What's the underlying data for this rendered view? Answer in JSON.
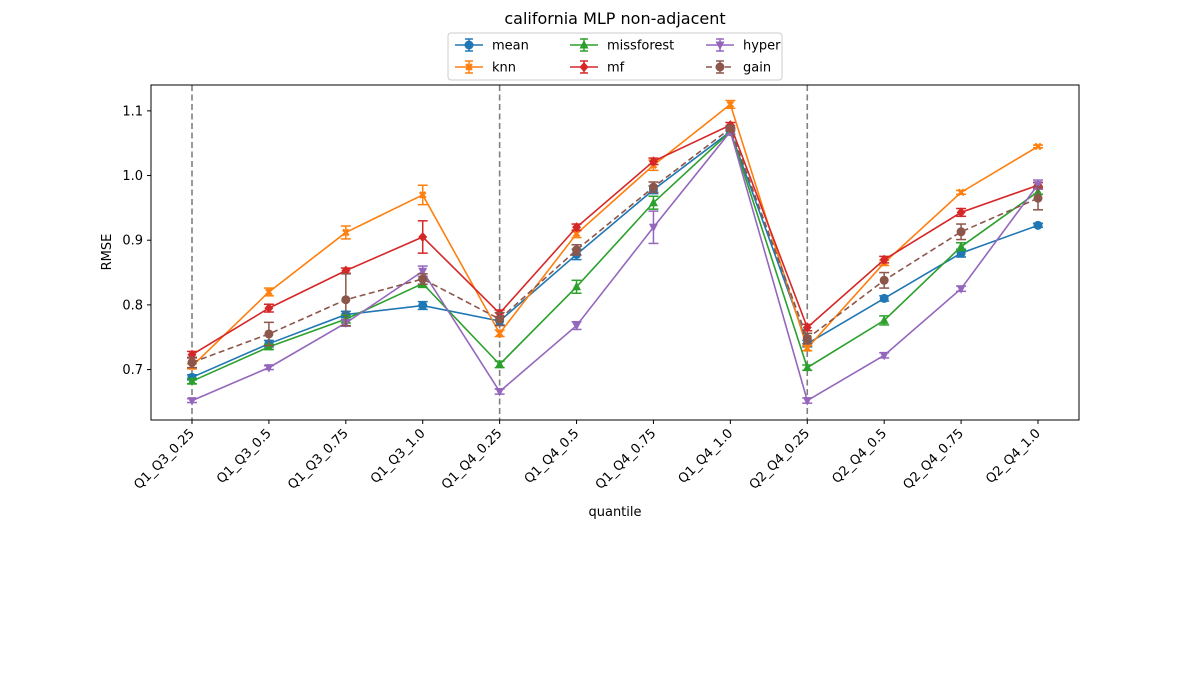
{
  "chart_data": {
    "type": "line",
    "title": "california MLP non-adjacent",
    "xlabel": "quantile",
    "ylabel": "RMSE",
    "categories": [
      "Q1_Q3_0.25",
      "Q1_Q3_0.5",
      "Q1_Q3_0.75",
      "Q1_Q3_1.0",
      "Q1_Q4_0.25",
      "Q1_Q4_0.5",
      "Q1_Q4_0.75",
      "Q1_Q4_1.0",
      "Q2_Q4_0.25",
      "Q2_Q4_0.5",
      "Q2_Q4_0.75",
      "Q2_Q4_1.0"
    ],
    "ylim": [
      0.622,
      1.14
    ],
    "yticks": [
      0.7,
      0.8,
      0.9,
      1.0,
      1.1
    ],
    "ytick_labels": [
      "0.7",
      "0.8",
      "0.9",
      "1.0",
      "1.1"
    ],
    "vlines_at_categories": [
      0,
      4,
      8
    ],
    "legend": {
      "position": "upper center",
      "columns": 3
    },
    "grid": false,
    "series": [
      {
        "name": "mean",
        "color": "#1f77b4",
        "marker": "circle",
        "dashed": false,
        "values": [
          0.688,
          0.74,
          0.785,
          0.799,
          0.775,
          0.878,
          0.978,
          1.068,
          0.74,
          0.81,
          0.88,
          0.923
        ],
        "errors": [
          0.004,
          0.005,
          0.005,
          0.006,
          0.006,
          0.008,
          0.006,
          0.004,
          0.005,
          0.004,
          0.006,
          0.003
        ]
      },
      {
        "name": "knn",
        "color": "#ff7f0e",
        "marker": "x",
        "dashed": false,
        "values": [
          0.705,
          0.82,
          0.912,
          0.97,
          0.756,
          0.91,
          1.016,
          1.11,
          0.733,
          0.865,
          0.974,
          1.045
        ],
        "errors": [
          0.004,
          0.006,
          0.01,
          0.015,
          0.005,
          0.006,
          0.008,
          0.006,
          0.004,
          0.004,
          0.003,
          0.002
        ]
      },
      {
        "name": "missforest",
        "color": "#2ca02c",
        "marker": "triangle-up",
        "dashed": false,
        "values": [
          0.682,
          0.735,
          0.778,
          0.833,
          0.708,
          0.828,
          0.958,
          1.068,
          0.703,
          0.776,
          0.89,
          0.975
        ],
        "errors": [
          0.004,
          0.004,
          0.006,
          0.006,
          0.005,
          0.01,
          0.01,
          0.004,
          0.004,
          0.007,
          0.006,
          0.004
        ]
      },
      {
        "name": "mf",
        "color": "#d62728",
        "marker": "diamond",
        "dashed": false,
        "values": [
          0.723,
          0.795,
          0.853,
          0.905,
          0.787,
          0.92,
          1.022,
          1.078,
          0.765,
          0.87,
          0.943,
          0.985
        ],
        "errors": [
          0.005,
          0.006,
          0.004,
          0.025,
          0.005,
          0.005,
          0.005,
          0.004,
          0.005,
          0.005,
          0.006,
          0.004
        ]
      },
      {
        "name": "hyper",
        "color": "#9467bd",
        "marker": "triangle-down",
        "dashed": false,
        "values": [
          0.652,
          0.703,
          0.772,
          0.852,
          0.666,
          0.768,
          0.92,
          1.068,
          0.652,
          0.722,
          0.825,
          0.986
        ],
        "errors": [
          0.003,
          0.003,
          0.005,
          0.008,
          0.004,
          0.006,
          0.025,
          0.004,
          0.004,
          0.004,
          0.004,
          0.007
        ]
      },
      {
        "name": "gain",
        "color": "#8c564b",
        "marker": "circle",
        "dashed": true,
        "values": [
          0.711,
          0.755,
          0.808,
          0.84,
          0.778,
          0.885,
          0.982,
          1.073,
          0.748,
          0.838,
          0.913,
          0.965
        ],
        "errors": [
          0.008,
          0.018,
          0.04,
          0.008,
          0.01,
          0.008,
          0.008,
          0.004,
          0.008,
          0.012,
          0.012,
          0.018
        ]
      }
    ]
  }
}
